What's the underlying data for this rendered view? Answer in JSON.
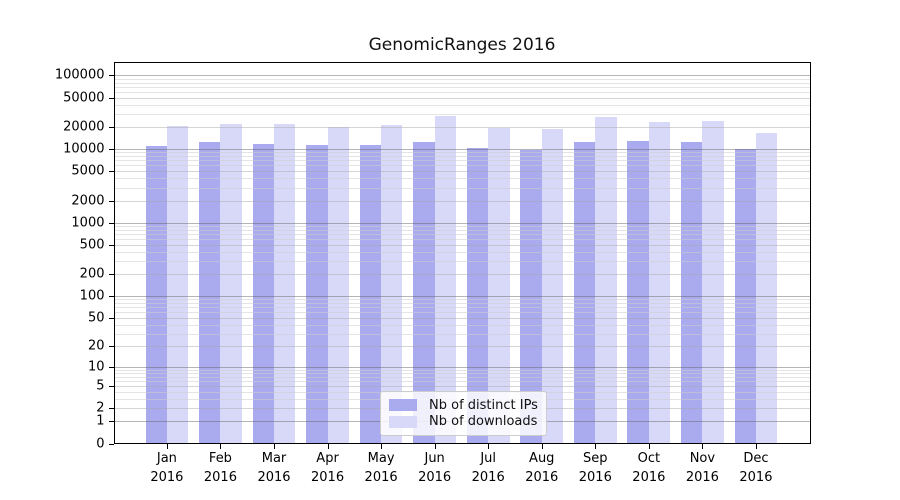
{
  "title": "GenomicRanges 2016",
  "chart_data": {
    "type": "bar",
    "title": "GenomicRanges 2016",
    "categories": [
      "Jan",
      "Feb",
      "Mar",
      "Apr",
      "May",
      "Jun",
      "Jul",
      "Aug",
      "Sep",
      "Oct",
      "Nov",
      "Dec"
    ],
    "category_year": "2016",
    "series": [
      {
        "name": "Nb of distinct IPs",
        "color": "#aaaaee",
        "values": [
          11000,
          12600,
          11900,
          11200,
          11450,
          12300,
          10250,
          9800,
          12300,
          13000,
          12400,
          9900
        ]
      },
      {
        "name": "Nb of downloads",
        "color": "#d8d8f8",
        "values": [
          20400,
          22200,
          22000,
          19700,
          21100,
          28000,
          19400,
          18700,
          27000,
          23500,
          24200,
          16800
        ]
      }
    ],
    "xlabel": "",
    "ylabel": "",
    "y_scale": "log10(value+1)",
    "ylim": [
      0,
      152000
    ],
    "y_ticks": [
      100000,
      50000,
      20000,
      10000,
      5000,
      2000,
      1000,
      500,
      200,
      100,
      50,
      20,
      10,
      5,
      2,
      1,
      0
    ],
    "grid": true,
    "legend_position": "bottom-center"
  }
}
